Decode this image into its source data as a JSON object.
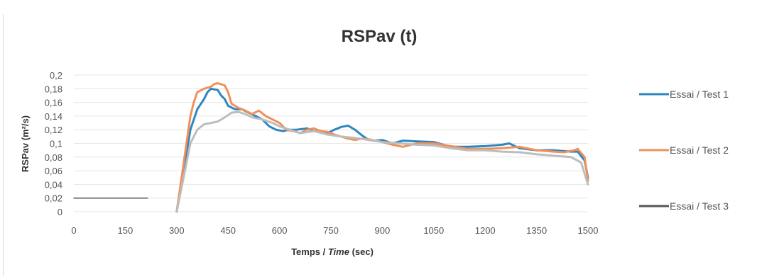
{
  "chart_data": {
    "type": "line",
    "title": "RSPav (t)",
    "xlabel": {
      "prefix": "Temps / ",
      "italic": "Time",
      "suffix": " (sec)"
    },
    "ylabel": "RSPav (m²/s)",
    "xlim": [
      0,
      1500
    ],
    "ylim": [
      0,
      0.2
    ],
    "x_ticks": [
      0,
      150,
      300,
      450,
      600,
      750,
      900,
      1050,
      1200,
      1350,
      1500
    ],
    "y_ticks": [
      0,
      0.02,
      0.04,
      0.06,
      0.08,
      0.1,
      0.12,
      0.14,
      0.16,
      0.18,
      0.2
    ],
    "y_tick_labels": [
      "0",
      "0,02",
      "0,04",
      "0,06",
      "0,08",
      "0,1",
      "0,12",
      "0,14",
      "0,16",
      "0,18",
      "0,2"
    ],
    "grid": true,
    "legend_position": "right",
    "series": [
      {
        "name": "Essai / Test 1",
        "color": "#2E86C1",
        "x": [
          300,
          320,
          340,
          360,
          380,
          390,
          400,
          420,
          430,
          440,
          450,
          470,
          490,
          510,
          530,
          550,
          570,
          590,
          610,
          630,
          650,
          680,
          700,
          720,
          740,
          760,
          780,
          800,
          820,
          840,
          860,
          880,
          900,
          930,
          960,
          1000,
          1050,
          1100,
          1150,
          1200,
          1250,
          1270,
          1300,
          1350,
          1400,
          1450,
          1470,
          1490,
          1500
        ],
        "y": [
          0,
          0.06,
          0.12,
          0.15,
          0.165,
          0.175,
          0.18,
          0.178,
          0.17,
          0.165,
          0.155,
          0.15,
          0.15,
          0.145,
          0.14,
          0.135,
          0.125,
          0.12,
          0.118,
          0.12,
          0.12,
          0.122,
          0.118,
          0.118,
          0.115,
          0.12,
          0.124,
          0.126,
          0.12,
          0.112,
          0.105,
          0.104,
          0.105,
          0.1,
          0.104,
          0.103,
          0.102,
          0.095,
          0.095,
          0.096,
          0.098,
          0.1,
          0.093,
          0.09,
          0.09,
          0.088,
          0.088,
          0.075,
          0.05
        ]
      },
      {
        "name": "Essai / Test 2",
        "color": "#F0905A",
        "x": [
          300,
          320,
          340,
          350,
          360,
          380,
          400,
          410,
          420,
          440,
          450,
          460,
          480,
          500,
          520,
          540,
          560,
          580,
          600,
          620,
          640,
          660,
          680,
          700,
          720,
          740,
          760,
          780,
          800,
          820,
          840,
          860,
          900,
          930,
          960,
          1000,
          1050,
          1100,
          1150,
          1200,
          1250,
          1300,
          1350,
          1400,
          1430,
          1460,
          1470,
          1490,
          1500
        ],
        "y": [
          0,
          0.07,
          0.14,
          0.16,
          0.175,
          0.18,
          0.183,
          0.187,
          0.188,
          0.185,
          0.175,
          0.158,
          0.152,
          0.148,
          0.143,
          0.148,
          0.14,
          0.135,
          0.13,
          0.12,
          0.118,
          0.115,
          0.12,
          0.122,
          0.118,
          0.117,
          0.113,
          0.11,
          0.107,
          0.105,
          0.107,
          0.106,
          0.102,
          0.098,
          0.095,
          0.1,
          0.1,
          0.096,
          0.092,
          0.092,
          0.093,
          0.095,
          0.09,
          0.088,
          0.087,
          0.09,
          0.092,
          0.08,
          0.045
        ]
      },
      {
        "name": "Essai / Test 3",
        "color": "#BDBDBD",
        "x": [
          300,
          320,
          340,
          360,
          380,
          400,
          420,
          440,
          460,
          480,
          500,
          520,
          550,
          580,
          600,
          630,
          660,
          700,
          740,
          780,
          820,
          860,
          900,
          950,
          1000,
          1050,
          1100,
          1150,
          1200,
          1250,
          1300,
          1350,
          1400,
          1450,
          1480,
          1500
        ],
        "y": [
          0,
          0.05,
          0.1,
          0.12,
          0.128,
          0.13,
          0.132,
          0.138,
          0.145,
          0.146,
          0.143,
          0.138,
          0.135,
          0.13,
          0.125,
          0.12,
          0.115,
          0.118,
          0.113,
          0.11,
          0.108,
          0.105,
          0.102,
          0.1,
          0.098,
          0.097,
          0.093,
          0.09,
          0.09,
          0.088,
          0.087,
          0.084,
          0.082,
          0.08,
          0.072,
          0.04
        ]
      },
      {
        "name": "",
        "color": "#555555",
        "x": [
          0,
          215
        ],
        "y": [
          0.02,
          0.02
        ]
      }
    ],
    "legend": [
      {
        "label": "Essai / Test 1",
        "color": "#2E86C1"
      },
      {
        "label": "Essai / Test 2",
        "color": "#F0905A"
      },
      {
        "label": "Essai / Test 3",
        "color": "#555555"
      }
    ]
  }
}
